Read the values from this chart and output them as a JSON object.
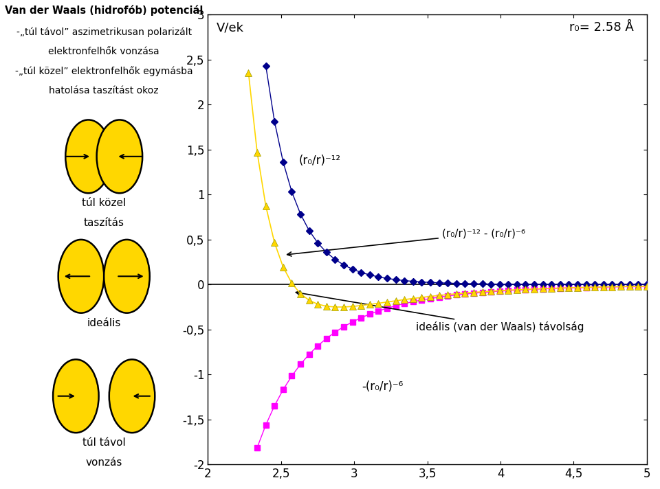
{
  "r0": 2.58,
  "ylim": [
    -2,
    3
  ],
  "xlim": [
    2,
    5
  ],
  "yticks": [
    -2,
    -1.5,
    -1,
    -0.5,
    0,
    0.5,
    1,
    1.5,
    2,
    2.5,
    3
  ],
  "xticks": [
    2,
    2.5,
    3,
    3.5,
    4,
    4.5,
    5
  ],
  "ylabel": "V/ek",
  "r0_label": "r₀= 2.58 Å",
  "label_rep": "(r₀/r)⁻¹²",
  "label_lj": "(r₀/r)⁻¹² - (r₀/r)⁻⁶",
  "label_attr": "-(r₀/r)⁻⁶",
  "label_ideal": "ideális (van der Waals) távolság",
  "color_rep": "#00008B",
  "color_lj": "#FFD700",
  "color_attr": "#FF00FF",
  "title_left_line1": "Van der Waals (hidrofób) potenciál",
  "title_left_line2": "-„túl távol” aszimetrikusan polarizált",
  "title_left_line3": "elektronfelhők vonzása",
  "title_left_line4": "-„túl közel” elektronfelhők egymásba",
  "title_left_line5": "hatolása taszítást okoz",
  "ball_label1a": "túl közel",
  "ball_label1b": "taszítás",
  "ball_label2": "ideális",
  "ball_label3a": "túl távol",
  "ball_label3b": "vonzás",
  "yellow": "#FFD700",
  "ball_edge": "#000000",
  "n_points": 50
}
